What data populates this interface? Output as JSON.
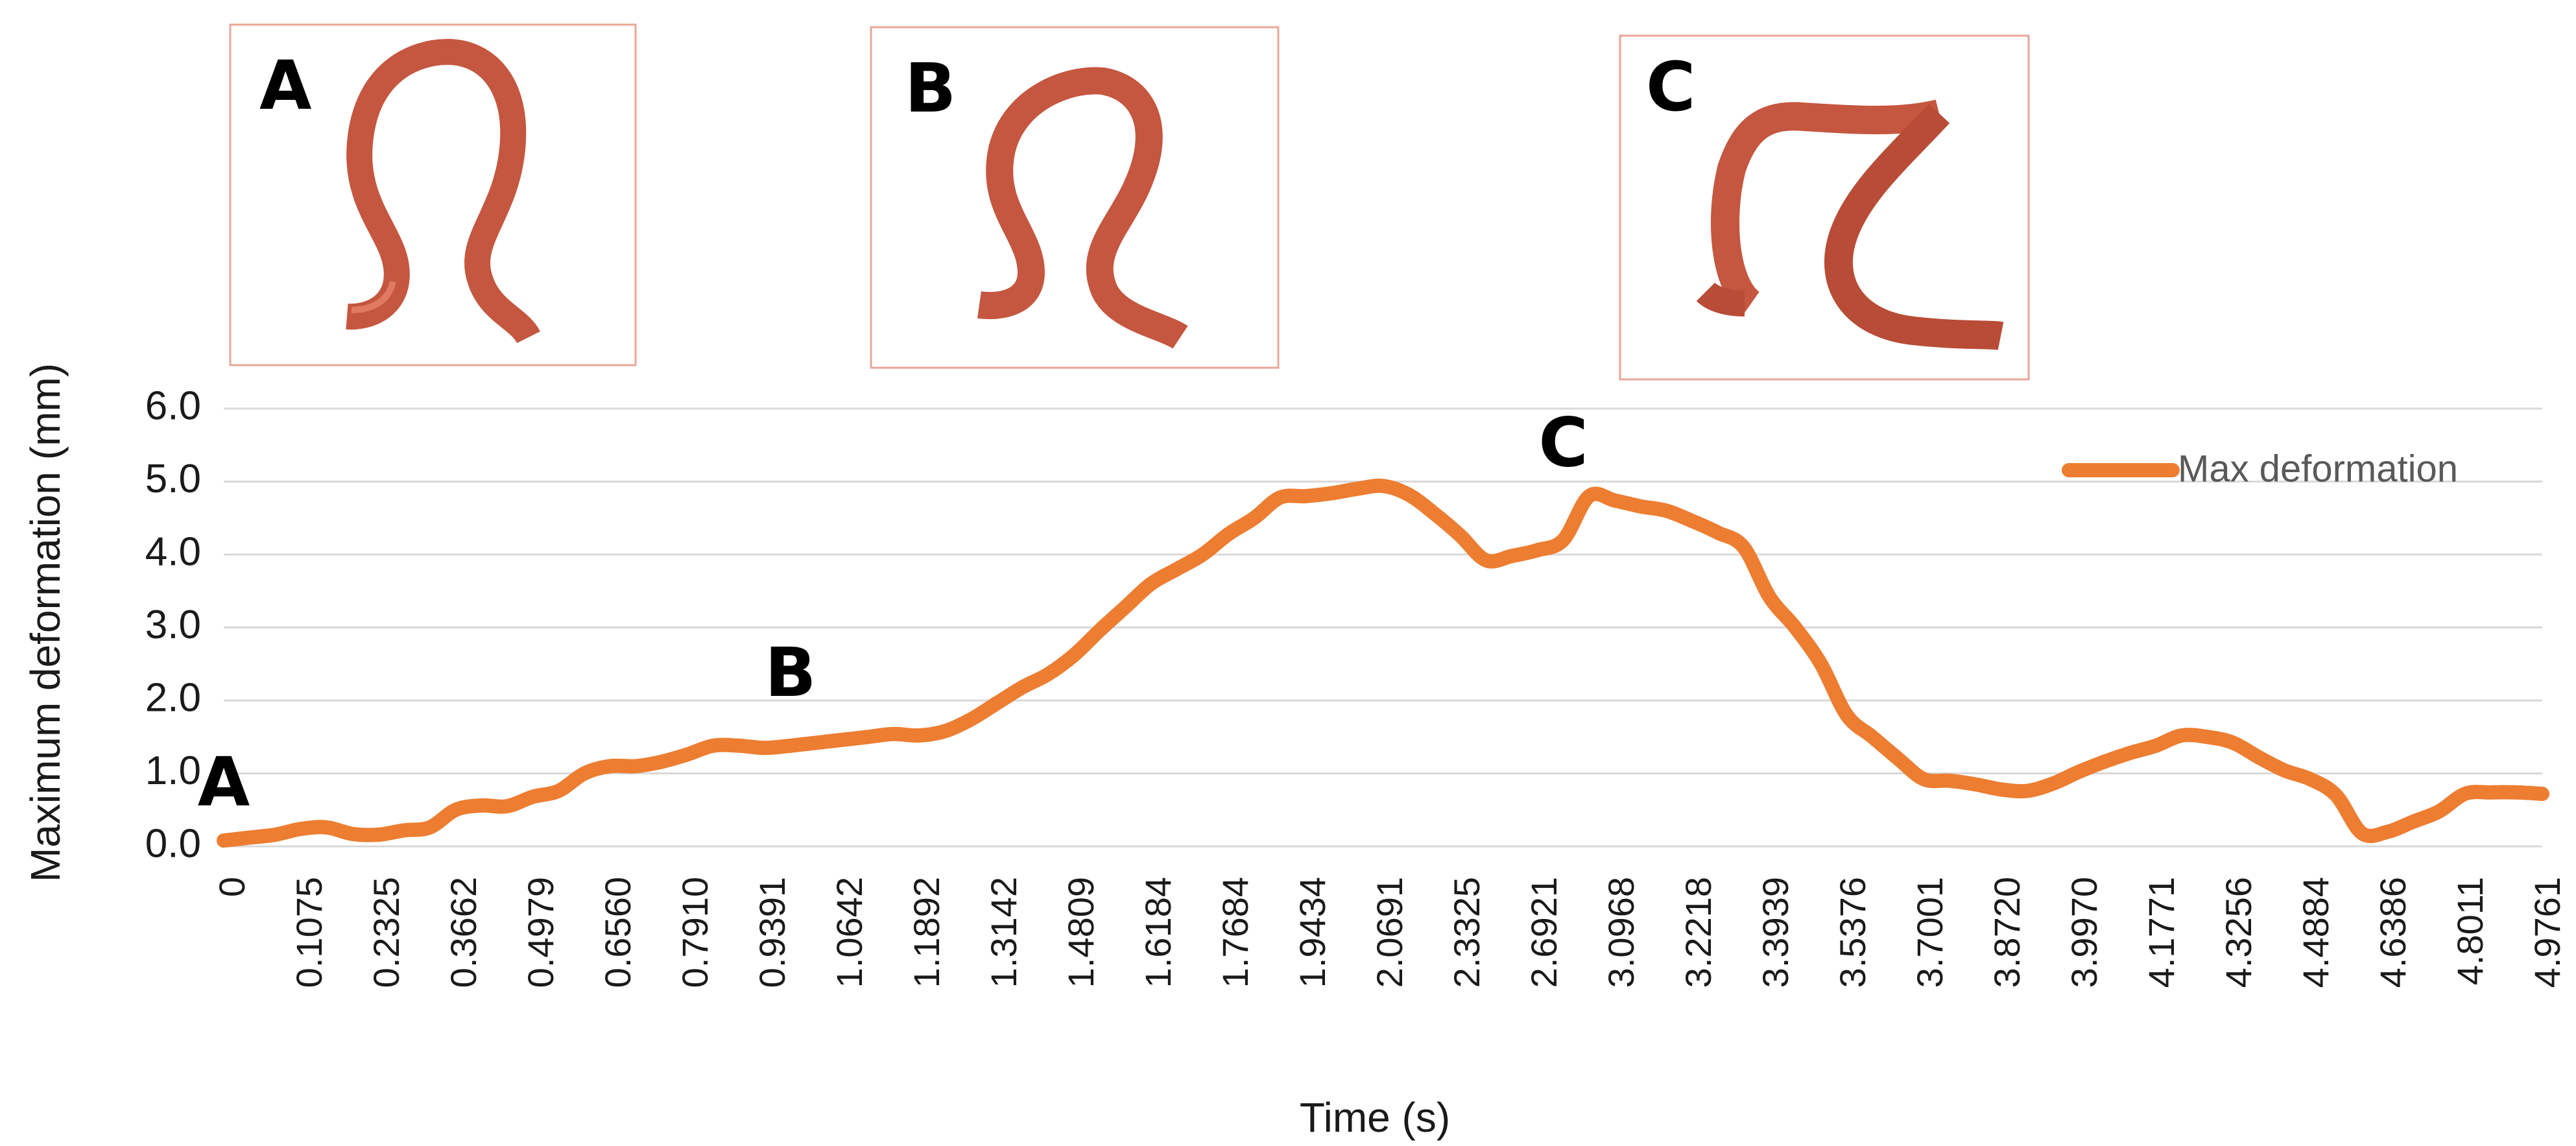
{
  "panels": [
    {
      "letter": "A"
    },
    {
      "letter": "B"
    },
    {
      "letter": "C"
    }
  ],
  "chart_data": {
    "type": "line",
    "title": "",
    "xlabel": "Time (s)",
    "ylabel": "Maximum deformation (mm)",
    "ylim": [
      0,
      6
    ],
    "yticks": [
      "0.0",
      "1.0",
      "2.0",
      "3.0",
      "4.0",
      "5.0",
      "6.0"
    ],
    "grid": true,
    "legend_position": "top-right",
    "line_color": "#ed7d31",
    "x_tick_labels": [
      "0",
      "0.1075",
      "0.2325",
      "0.3662",
      "0.4979",
      "0.6560",
      "0.7910",
      "0.9391",
      "1.0642",
      "1.1892",
      "1.3142",
      "1.4809",
      "1.6184",
      "1.7684",
      "1.9434",
      "2.0691",
      "2.3325",
      "2.6921",
      "3.0968",
      "3.2218",
      "3.3939",
      "3.5376",
      "3.7001",
      "3.8720",
      "3.9970",
      "4.1771",
      "4.3256",
      "4.4884",
      "4.6386",
      "4.8011",
      "4.9761"
    ],
    "series": [
      {
        "name": "Max deformation",
        "values": [
          0.08,
          0.12,
          0.16,
          0.24,
          0.26,
          0.17,
          0.16,
          0.22,
          0.26,
          0.5,
          0.56,
          0.55,
          0.68,
          0.76,
          1.0,
          1.1,
          1.1,
          1.16,
          1.26,
          1.38,
          1.38,
          1.35,
          1.38,
          1.42,
          1.46,
          1.5,
          1.54,
          1.52,
          1.58,
          1.74,
          1.96,
          2.18,
          2.36,
          2.62,
          2.96,
          3.28,
          3.6,
          3.8,
          4.0,
          4.28,
          4.5,
          4.78,
          4.8,
          4.84,
          4.9,
          4.94,
          4.82,
          4.56,
          4.26,
          3.92,
          3.98,
          4.06,
          4.2,
          4.8,
          4.74,
          4.66,
          4.6,
          4.46,
          4.3,
          4.1,
          3.42,
          3.0,
          2.5,
          1.8,
          1.5,
          1.2,
          0.92,
          0.9,
          0.85,
          0.78,
          0.76,
          0.86,
          1.02,
          1.16,
          1.28,
          1.38,
          1.52,
          1.5,
          1.42,
          1.22,
          1.04,
          0.92,
          0.7,
          0.18,
          0.2,
          0.34,
          0.48,
          0.72,
          0.74,
          0.74,
          0.72
        ]
      }
    ],
    "annotations": [
      {
        "label": "A",
        "x_index": 0,
        "value": 0.9
      },
      {
        "label": "B",
        "x_index": 22,
        "value": 2.4
      },
      {
        "label": "C",
        "x_index": 52,
        "value": 5.55
      }
    ]
  }
}
